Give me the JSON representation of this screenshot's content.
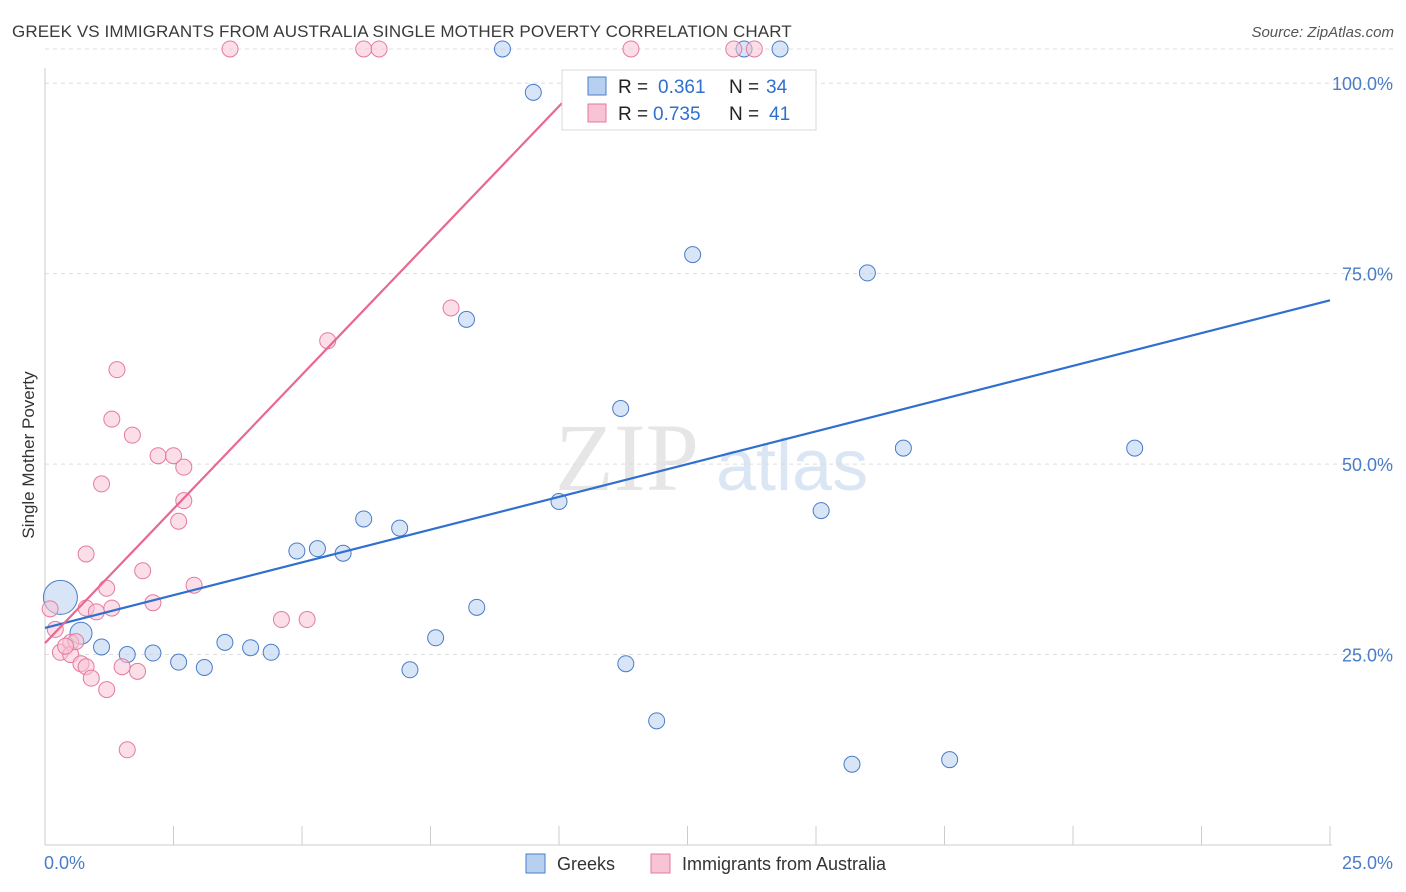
{
  "title": "GREEK VS IMMIGRANTS FROM AUSTRALIA SINGLE MOTHER POVERTY CORRELATION CHART",
  "source": "Source: ZipAtlas.com",
  "watermark": {
    "zip": "ZIP",
    "atlas": "atlas"
  },
  "colors": {
    "blue": "#4a7cc8",
    "blue_fill": "#b8d0f0",
    "blue_line": "#2f6fcf",
    "pink": "#e57aa0",
    "pink_fill": "#f8c3d4",
    "pink_line": "#e8688f",
    "grid": "#dddddd"
  },
  "legend_box": {
    "rows": [
      {
        "r_label": "R =",
        "r_value": "0.361",
        "n_label": "N =",
        "n_value": "34"
      },
      {
        "r_label": "R =",
        "r_value": "0.735",
        "n_label": "N =",
        "n_value": "41"
      }
    ]
  },
  "chart_data": {
    "type": "scatter",
    "title": "GREEK VS IMMIGRANTS FROM AUSTRALIA SINGLE MOTHER POVERTY CORRELATION CHART",
    "xlabel": "",
    "ylabel": "Single Mother Poverty",
    "xlim": [
      0,
      25
    ],
    "ylim": [
      0,
      102
    ],
    "x_tick_labels": [
      "0.0%",
      "25.0%"
    ],
    "y_tick_labels": [
      "25.0%",
      "50.0%",
      "75.0%",
      "100.0%"
    ],
    "y_ticks": [
      25,
      50,
      75,
      100
    ],
    "legend": [
      "Greeks",
      "Immigrants from Australia"
    ],
    "series": [
      {
        "name": "Greeks",
        "color": "#4a7cc8",
        "r": 0.361,
        "n": 34,
        "trend": [
          [
            0,
            28.5
          ],
          [
            25,
            71.5
          ]
        ],
        "points": [
          [
            0.3,
            32.5,
            3
          ],
          [
            0.7,
            27.8,
            2
          ],
          [
            1.1,
            26.0,
            1
          ],
          [
            1.6,
            25.0,
            1
          ],
          [
            2.1,
            25.2,
            1
          ],
          [
            2.6,
            24.0,
            1
          ],
          [
            3.1,
            23.3,
            1
          ],
          [
            3.5,
            26.6,
            1
          ],
          [
            4.0,
            25.9,
            1
          ],
          [
            4.4,
            25.3,
            1
          ],
          [
            4.9,
            38.6,
            1
          ],
          [
            5.3,
            38.9,
            1
          ],
          [
            5.8,
            38.3,
            1
          ],
          [
            6.2,
            42.8,
            1
          ],
          [
            6.9,
            41.6,
            1
          ],
          [
            7.1,
            23.0,
            1
          ],
          [
            7.6,
            27.2,
            1
          ],
          [
            8.2,
            69.0,
            1
          ],
          [
            8.4,
            31.2,
            1
          ],
          [
            8.9,
            104.5,
            1
          ],
          [
            9.5,
            98.8,
            1
          ],
          [
            10.0,
            45.1,
            1
          ],
          [
            11.2,
            57.3,
            1
          ],
          [
            11.3,
            23.8,
            1
          ],
          [
            11.9,
            16.3,
            1
          ],
          [
            12.6,
            77.5,
            1
          ],
          [
            13.6,
            104.5,
            1
          ],
          [
            14.3,
            104.5,
            1
          ],
          [
            15.1,
            43.9,
            1
          ],
          [
            15.7,
            10.6,
            1
          ],
          [
            16.0,
            75.1,
            1
          ],
          [
            16.7,
            52.1,
            1
          ],
          [
            17.6,
            11.2,
            1
          ],
          [
            21.2,
            52.1,
            1
          ]
        ]
      },
      {
        "name": "Immigrants from Australia",
        "color": "#e57aa0",
        "r": 0.735,
        "n": 41,
        "trend": [
          [
            0,
            26.5
          ],
          [
            10.5,
            100.5
          ]
        ],
        "points": [
          [
            0.1,
            31.0,
            1
          ],
          [
            0.3,
            25.3,
            1
          ],
          [
            0.5,
            26.6,
            1
          ],
          [
            0.5,
            25.0,
            1
          ],
          [
            0.6,
            26.7,
            1
          ],
          [
            0.7,
            23.8,
            1
          ],
          [
            0.8,
            23.4,
            1
          ],
          [
            0.8,
            31.1,
            1
          ],
          [
            0.8,
            38.2,
            1
          ],
          [
            0.9,
            21.9,
            1
          ],
          [
            1.0,
            30.6,
            1
          ],
          [
            1.1,
            47.4,
            1
          ],
          [
            1.2,
            20.4,
            1
          ],
          [
            1.2,
            33.7,
            1
          ],
          [
            1.3,
            31.1,
            1
          ],
          [
            1.3,
            55.9,
            1
          ],
          [
            1.4,
            62.4,
            1
          ],
          [
            1.5,
            23.4,
            1
          ],
          [
            1.6,
            12.5,
            1
          ],
          [
            1.7,
            53.8,
            1
          ],
          [
            1.8,
            22.8,
            1
          ],
          [
            1.9,
            36.0,
            1
          ],
          [
            2.1,
            31.8,
            1
          ],
          [
            2.2,
            51.1,
            1
          ],
          [
            2.5,
            51.1,
            1
          ],
          [
            2.6,
            42.5,
            1
          ],
          [
            2.7,
            45.2,
            1
          ],
          [
            2.7,
            49.6,
            1
          ],
          [
            2.9,
            34.1,
            1
          ],
          [
            3.6,
            104.5,
            1
          ],
          [
            4.6,
            29.6,
            1
          ],
          [
            5.1,
            29.6,
            1
          ],
          [
            5.5,
            66.2,
            1
          ],
          [
            6.2,
            104.5,
            1
          ],
          [
            6.5,
            104.5,
            1
          ],
          [
            7.9,
            70.5,
            1
          ],
          [
            11.4,
            104.5,
            1
          ],
          [
            13.4,
            104.5,
            1
          ],
          [
            13.8,
            104.5,
            1
          ],
          [
            0.2,
            28.3,
            1
          ],
          [
            0.4,
            26.1,
            1
          ]
        ]
      }
    ]
  }
}
